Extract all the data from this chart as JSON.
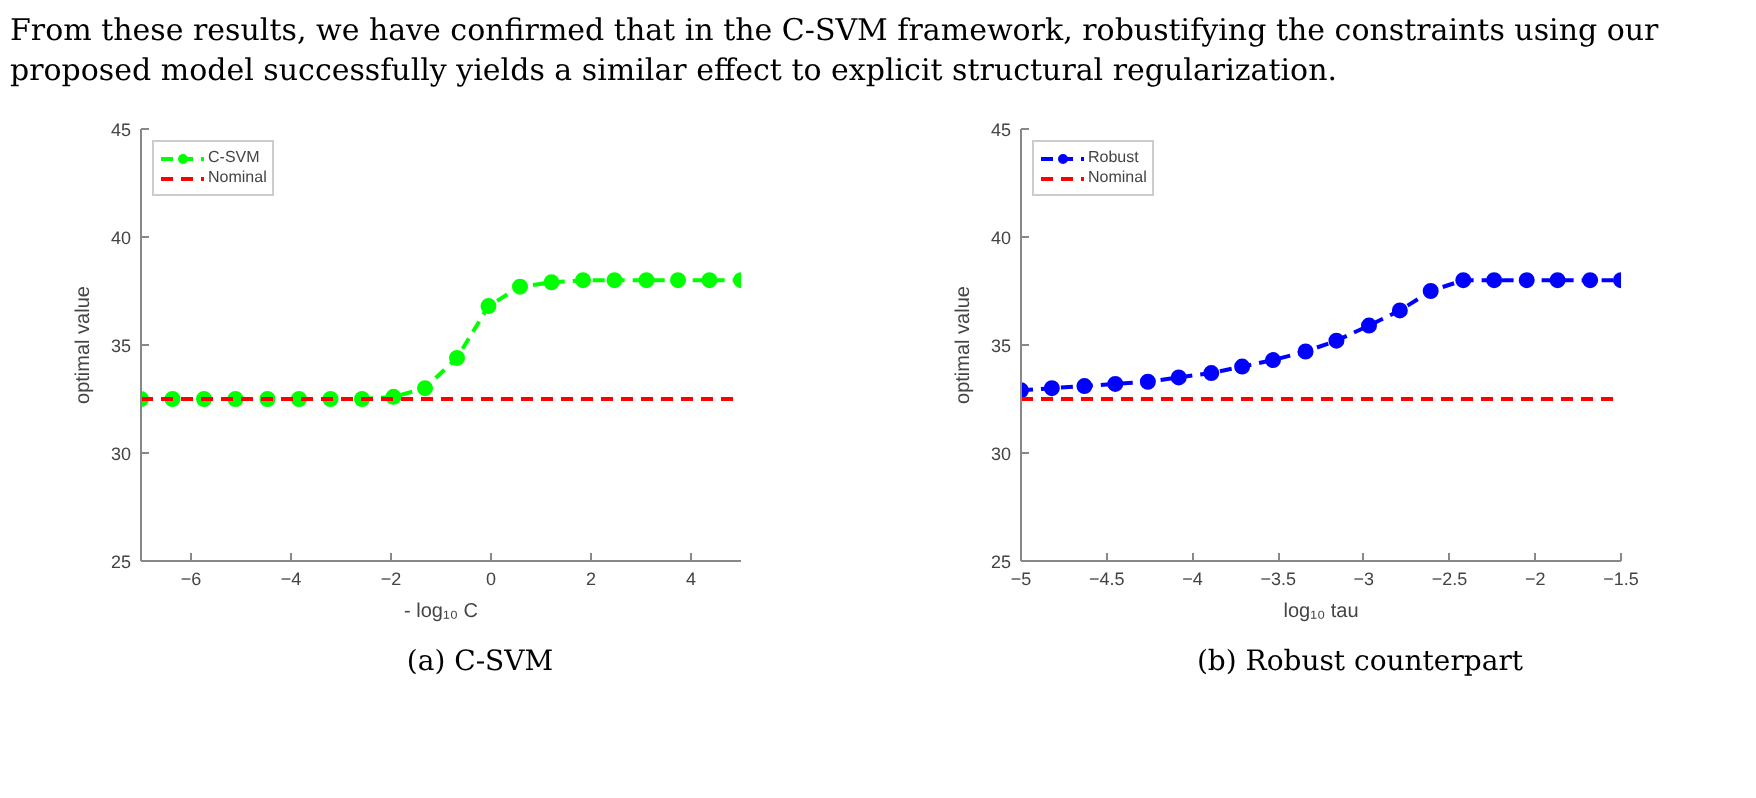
{
  "chart_data": [
    {
      "type": "line",
      "annotations": [
        "From these results, we have confirmed that in the C-SVM framework, robustifying the constraints using our proposed model successfully yields a similar effect to explicit structural regularization.",
        "(a) C-SVM"
      ],
      "xlabel": "- log₁₀ C",
      "ylabel": "optimal value",
      "xlim": [
        -7,
        5
      ],
      "ylim": [
        25,
        45
      ],
      "xticks": [
        -6,
        -4,
        -2,
        0,
        2,
        4
      ],
      "yticks": [
        25,
        30,
        35,
        40,
        45
      ],
      "grid": false,
      "legend": "top left",
      "series": [
        {
          "name": "C-SVM",
          "color": "#00ff00",
          "marker": "circle",
          "line_style": "dashed",
          "x": [
            -7,
            -6.37,
            -5.74,
            -5.11,
            -4.47,
            -3.84,
            -3.21,
            -2.58,
            -1.95,
            -1.32,
            -0.68,
            -0.05,
            0.58,
            1.21,
            1.84,
            2.47,
            3.11,
            3.74,
            4.37,
            5.0
          ],
          "values": [
            32.5,
            32.5,
            32.5,
            32.5,
            32.5,
            32.5,
            32.5,
            32.5,
            32.6,
            33.0,
            34.4,
            36.8,
            37.7,
            37.9,
            38.0,
            38.0,
            38.0,
            38.0,
            38.0,
            38.0
          ]
        },
        {
          "name": "Nominal",
          "color": "#ff0000",
          "marker": "none",
          "line_style": "dashed",
          "x": [
            -7,
            5
          ],
          "values": [
            32.5,
            32.5
          ]
        }
      ]
    },
    {
      "type": "line",
      "annotations": [
        "(b) Robust counterpart"
      ],
      "xlabel": "log₁₀ tau",
      "ylabel": "optimal value",
      "xlim": [
        -5,
        -1.5
      ],
      "ylim": [
        25,
        45
      ],
      "xticks": [
        -5,
        -4.5,
        -4,
        -3.5,
        -3,
        -2.5,
        -2,
        -1.5
      ],
      "yticks": [
        25,
        30,
        35,
        40,
        45
      ],
      "grid": false,
      "legend": "top left",
      "series": [
        {
          "name": "Robust",
          "color": "#0000ff",
          "marker": "circle",
          "line_style": "dashed",
          "x": [
            -5,
            -4.82,
            -4.63,
            -4.45,
            -4.26,
            -4.08,
            -3.89,
            -3.71,
            -3.53,
            -3.34,
            -3.16,
            -2.97,
            -2.79,
            -2.61,
            -2.42,
            -2.24,
            -2.05,
            -1.87,
            -1.68,
            -1.5
          ],
          "values": [
            32.9,
            33.0,
            33.1,
            33.2,
            33.3,
            33.5,
            33.7,
            34.0,
            34.3,
            34.7,
            35.2,
            35.9,
            36.6,
            37.5,
            38.0,
            38.0,
            38.0,
            38.0,
            38.0,
            38.0
          ]
        },
        {
          "name": "Nominal",
          "color": "#ff0000",
          "marker": "none",
          "line_style": "dashed",
          "x": [
            -5,
            -1.5
          ],
          "values": [
            32.5,
            32.5
          ]
        }
      ]
    }
  ]
}
